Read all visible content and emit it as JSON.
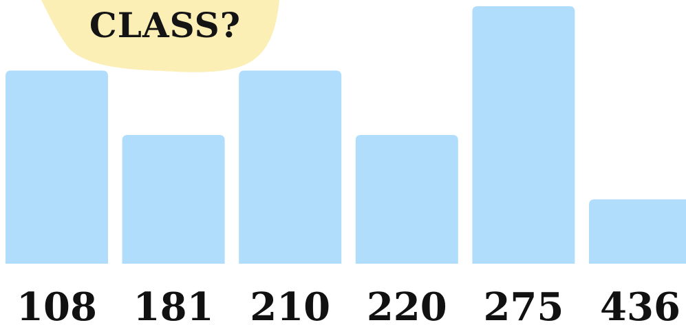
{
  "colors": {
    "bar": "#b0ddfc",
    "badge": "#fbefb6",
    "text": "#111111",
    "background": "#ffffff"
  },
  "badge": {
    "text": "CLASS?"
  },
  "chart_data": {
    "type": "bar",
    "title": "",
    "xlabel": "",
    "ylabel": "",
    "categories": [
      "108",
      "181",
      "210",
      "220",
      "275",
      "436"
    ],
    "values": [
      3,
      2,
      3,
      2,
      4,
      1
    ],
    "ylim": [
      0,
      4
    ],
    "grid": false,
    "legend": "none"
  }
}
